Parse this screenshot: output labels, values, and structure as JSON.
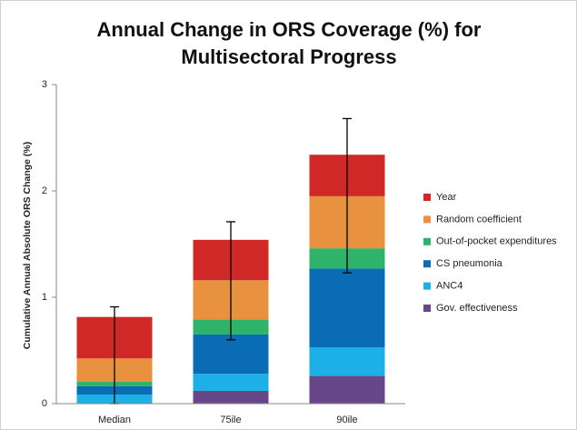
{
  "chart_data": {
    "type": "stacked_bar",
    "title": "Annual Change in ORS Coverage (%) for Multisectoral Progress",
    "y_label": "Cumulative Annual Absolute ORS Change (%)",
    "categories": [
      "Median",
      "75ile",
      "90ile"
    ],
    "series": [
      {
        "name": "Gov. effectiveness",
        "color": "#68468a",
        "values": [
          0,
          0.12,
          0.26
        ]
      },
      {
        "name": "ANC4",
        "color": "#1cb0e6",
        "values": [
          0.085,
          0.16,
          0.27
        ]
      },
      {
        "name": "CS pneumonia",
        "color": "#0b6cb6",
        "values": [
          0.08,
          0.37,
          0.74
        ]
      },
      {
        "name": "Out-of-pocket expenditures",
        "color": "#2db36a",
        "values": [
          0.04,
          0.14,
          0.19
        ]
      },
      {
        "name": "Random coefficient",
        "color": "#e8923f",
        "values": [
          0.22,
          0.37,
          0.49
        ]
      },
      {
        "name": "Year",
        "color": "#d02727",
        "values": [
          0.39,
          0.38,
          0.39
        ]
      }
    ],
    "error_bars": [
      [
        0,
        0.91
      ],
      [
        0.6,
        1.71
      ],
      [
        1.23,
        2.68
      ]
    ],
    "ylim": [
      0,
      3
    ],
    "yticks": [
      0,
      1,
      2,
      3
    ],
    "legend": "right"
  }
}
